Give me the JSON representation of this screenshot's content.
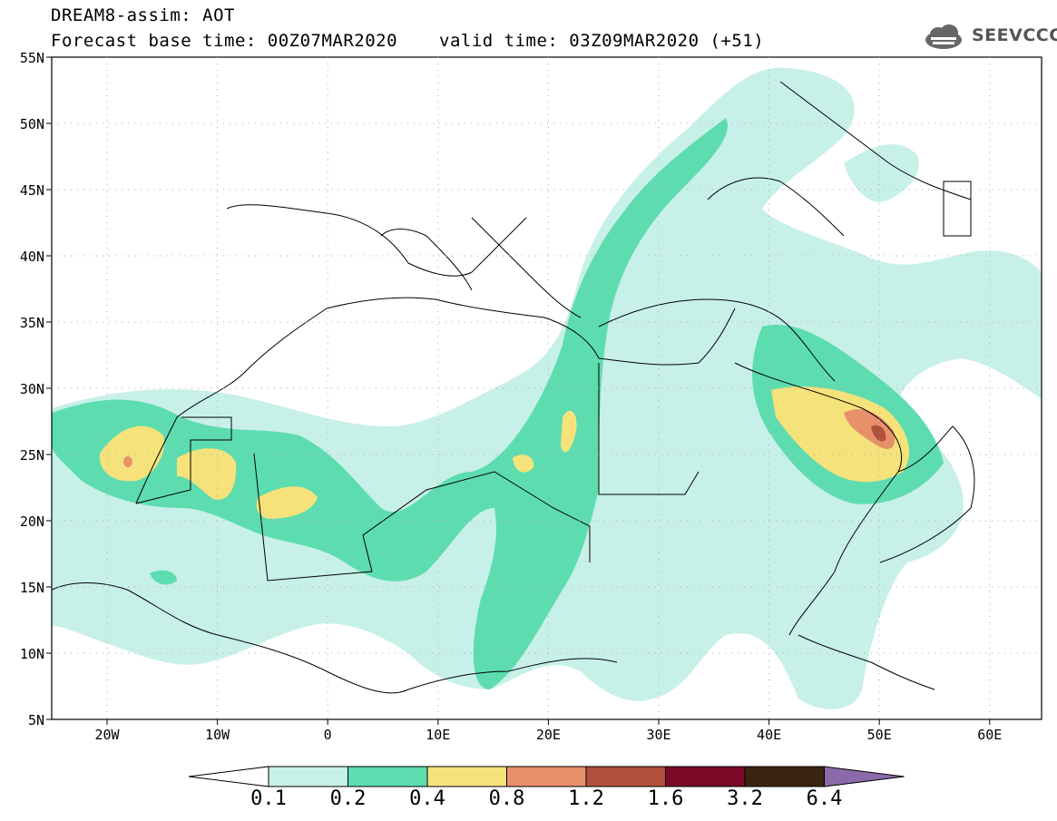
{
  "header": {
    "title": "DREAM8-assim: AOT",
    "base_time": "Forecast base time: 00Z07MAR2020",
    "valid_time": "valid time: 03Z09MAR2020 (+51)",
    "logo_text": "SEEVCCC",
    "logo_icon": "cloud-icon"
  },
  "map": {
    "lat_labels": [
      "55N",
      "50N",
      "45N",
      "40N",
      "35N",
      "30N",
      "25N",
      "20N",
      "15N",
      "10N",
      "5N"
    ],
    "lon_labels": [
      "20W",
      "10W",
      "0",
      "10E",
      "20E",
      "30E",
      "40E",
      "50E",
      "60E"
    ]
  },
  "colorbar": {
    "labels": [
      "0.1",
      "0.2",
      "0.4",
      "0.8",
      "1.2",
      "1.6",
      "3.2",
      "6.4"
    ],
    "colors": [
      "#ffffff",
      "#c7f0e8",
      "#5ddcb0",
      "#f5e27a",
      "#e8906a",
      "#b0503c",
      "#7a0a28",
      "#3b2410",
      "#8a6aa8"
    ]
  }
}
